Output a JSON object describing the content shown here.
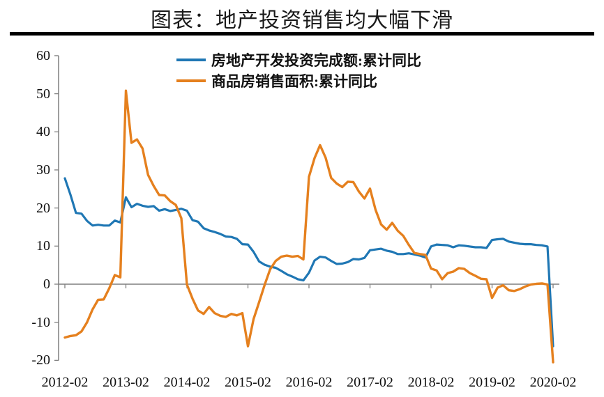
{
  "header": {
    "title": "图表：地产投资销售均大幅下滑"
  },
  "chart_data": {
    "type": "line",
    "title": "图表：地产投资销售均大幅下滑",
    "legend_position": "top-center",
    "grid": "zero-line-only",
    "colors": {
      "axis": "#7F7F7F",
      "tick_text": "#111111",
      "title_text": "#1a1a1a"
    },
    "y_axis": {
      "ticks": [
        60,
        50,
        40,
        30,
        20,
        10,
        0,
        -10,
        -20
      ],
      "lim": [
        -20.6,
        60
      ]
    },
    "x_axis": {
      "tick_labels": [
        "2012-02",
        "2013-02",
        "2014-02",
        "2015-02",
        "2016-02",
        "2017-02",
        "2018-02",
        "2019-02",
        "2020-02"
      ]
    },
    "categories": [
      "2012-02",
      "2012-03",
      "2012-04",
      "2012-05",
      "2012-06",
      "2012-07",
      "2012-08",
      "2012-09",
      "2012-10",
      "2012-11",
      "2012-12",
      "2013-02",
      "2013-03",
      "2013-04",
      "2013-05",
      "2013-06",
      "2013-07",
      "2013-08",
      "2013-09",
      "2013-10",
      "2013-11",
      "2013-12",
      "2014-02",
      "2014-03",
      "2014-04",
      "2014-05",
      "2014-06",
      "2014-07",
      "2014-08",
      "2014-09",
      "2014-10",
      "2014-11",
      "2014-12",
      "2015-02",
      "2015-03",
      "2015-04",
      "2015-05",
      "2015-06",
      "2015-07",
      "2015-08",
      "2015-09",
      "2015-10",
      "2015-11",
      "2015-12",
      "2016-02",
      "2016-03",
      "2016-04",
      "2016-05",
      "2016-06",
      "2016-07",
      "2016-08",
      "2016-09",
      "2016-10",
      "2016-11",
      "2016-12",
      "2017-02",
      "2017-03",
      "2017-04",
      "2017-05",
      "2017-06",
      "2017-07",
      "2017-08",
      "2017-09",
      "2017-10",
      "2017-11",
      "2017-12",
      "2018-02",
      "2018-03",
      "2018-04",
      "2018-05",
      "2018-06",
      "2018-07",
      "2018-08",
      "2018-09",
      "2018-10",
      "2018-11",
      "2018-12",
      "2019-02",
      "2019-03",
      "2019-04",
      "2019-05",
      "2019-06",
      "2019-07",
      "2019-08",
      "2019-09",
      "2019-10",
      "2019-11",
      "2019-12",
      "2020-02"
    ],
    "series": [
      {
        "name": "房地产开发投资完成额:累计同比",
        "color": "#1F77B4",
        "values": [
          27.8,
          23.5,
          18.7,
          18.5,
          16.6,
          15.4,
          15.6,
          15.4,
          15.4,
          16.7,
          16.2,
          22.8,
          20.2,
          21.1,
          20.6,
          20.3,
          20.5,
          19.3,
          19.7,
          19.2,
          19.5,
          19.8,
          19.3,
          16.8,
          16.4,
          14.7,
          14.1,
          13.7,
          13.2,
          12.5,
          12.4,
          11.9,
          10.5,
          10.4,
          8.5,
          6.0,
          5.1,
          4.6,
          4.3,
          3.5,
          2.6,
          2.0,
          1.3,
          1.0,
          3.0,
          6.2,
          7.2,
          7.0,
          6.1,
          5.3,
          5.4,
          5.8,
          6.6,
          6.5,
          6.9,
          8.9,
          9.1,
          9.3,
          8.8,
          8.5,
          7.9,
          7.9,
          8.1,
          7.8,
          7.5,
          7.0,
          9.9,
          10.4,
          10.3,
          10.2,
          9.7,
          10.2,
          10.1,
          9.9,
          9.7,
          9.7,
          9.5,
          11.6,
          11.8,
          11.9,
          11.2,
          10.9,
          10.6,
          10.5,
          10.5,
          10.3,
          10.2,
          9.9,
          -16.3
        ]
      },
      {
        "name": "商品房销售面积:累计同比",
        "color": "#E5801E",
        "values": [
          -14.0,
          -13.6,
          -13.4,
          -12.4,
          -10.0,
          -6.6,
          -4.1,
          -4.0,
          -1.1,
          2.4,
          1.8,
          50.8,
          37.1,
          38.0,
          35.6,
          28.7,
          25.8,
          23.4,
          23.3,
          21.8,
          20.8,
          17.3,
          -0.1,
          -3.8,
          -6.9,
          -7.8,
          -6.0,
          -7.6,
          -8.3,
          -8.6,
          -7.8,
          -8.2,
          -7.6,
          -16.3,
          -9.2,
          -4.8,
          -0.2,
          3.9,
          6.1,
          7.2,
          7.5,
          7.2,
          7.4,
          6.5,
          28.2,
          33.1,
          36.5,
          33.2,
          27.9,
          26.4,
          25.5,
          26.9,
          26.8,
          24.3,
          22.5,
          25.1,
          19.5,
          15.7,
          14.3,
          16.1,
          14.0,
          12.7,
          10.3,
          8.2,
          7.9,
          7.7,
          4.1,
          3.6,
          1.3,
          2.9,
          3.3,
          4.2,
          4.0,
          2.9,
          2.2,
          1.4,
          1.3,
          -3.6,
          -0.9,
          -0.3,
          -1.6,
          -1.8,
          -1.3,
          -0.6,
          -0.1,
          0.1,
          0.2,
          -0.1,
          -20.5
        ]
      }
    ]
  }
}
